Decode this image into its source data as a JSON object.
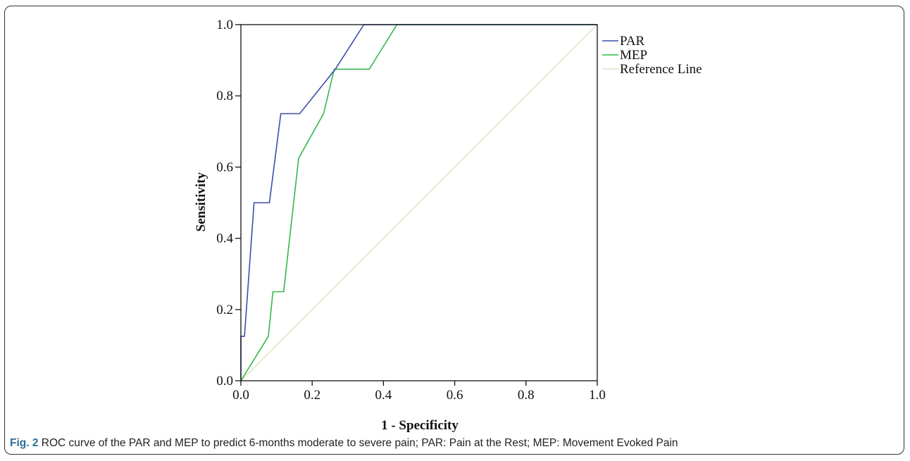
{
  "caption": {
    "label": "Fig. 2",
    "text": " ROC curve of the PAR and MEP to predict 6-months moderate to severe pain; PAR: Pain at the Rest; MEP: Movement Evoked Pain"
  },
  "chart_data": {
    "type": "line",
    "title": "",
    "xlabel": "1 - Specificity",
    "ylabel": "Sensitivity",
    "xlim": [
      0,
      1
    ],
    "ylim": [
      0,
      1
    ],
    "x_ticks": [
      "0.0",
      "0.2",
      "0.4",
      "0.6",
      "0.8",
      "1.0"
    ],
    "y_ticks": [
      "0.0",
      "0.2",
      "0.4",
      "0.6",
      "0.8",
      "1.0"
    ],
    "grid": false,
    "legend_position": "right",
    "series": [
      {
        "name": "PAR",
        "color": "#3a4fa8",
        "points": [
          [
            0,
            0
          ],
          [
            0,
            0.125
          ],
          [
            0.01,
            0.125
          ],
          [
            0.037,
            0.5
          ],
          [
            0.08,
            0.5
          ],
          [
            0.112,
            0.75
          ],
          [
            0.165,
            0.75
          ],
          [
            0.265,
            0.875
          ],
          [
            0.345,
            1.0
          ],
          [
            1.0,
            1.0
          ]
        ]
      },
      {
        "name": "MEP",
        "color": "#33b84a",
        "points": [
          [
            0,
            0
          ],
          [
            0.077,
            0.125
          ],
          [
            0.09,
            0.25
          ],
          [
            0.12,
            0.25
          ],
          [
            0.162,
            0.625
          ],
          [
            0.232,
            0.75
          ],
          [
            0.262,
            0.875
          ],
          [
            0.36,
            0.875
          ],
          [
            0.438,
            1.0
          ],
          [
            1.0,
            1.0
          ]
        ]
      },
      {
        "name": "Reference Line",
        "color": "#e6e2bf",
        "points": [
          [
            0,
            0
          ],
          [
            1,
            1
          ]
        ]
      }
    ]
  }
}
